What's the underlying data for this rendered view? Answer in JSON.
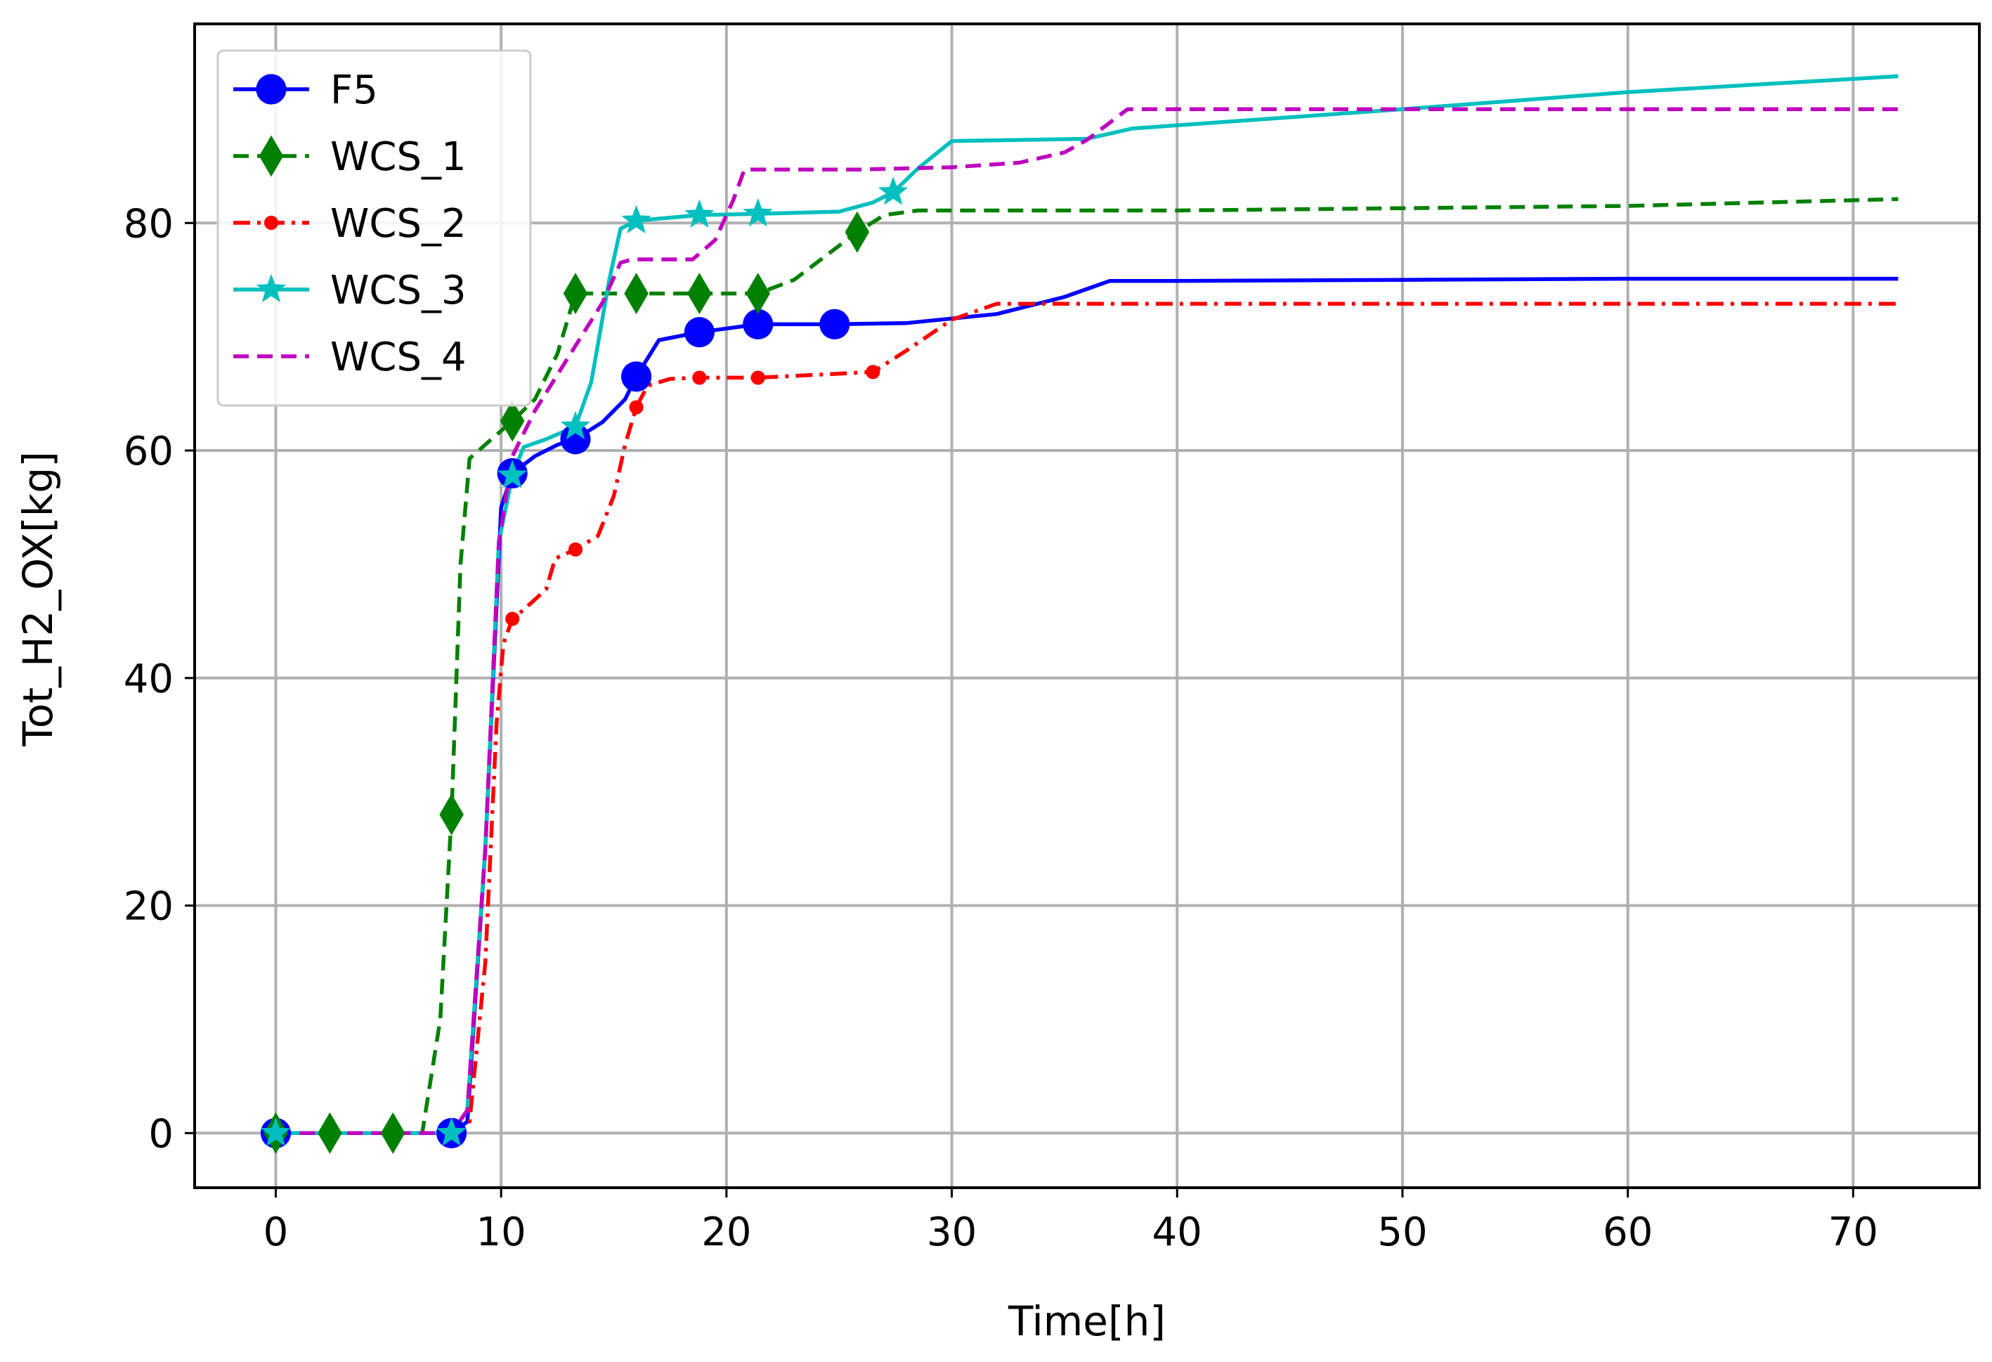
{
  "chart_data": {
    "type": "line",
    "title": "",
    "xlabel": "Time[h]",
    "ylabel": "Tot_H2_OX[kg]",
    "xlim": [
      -3.6,
      75.6
    ],
    "ylim": [
      -4.8,
      97.5
    ],
    "xticks": [
      0,
      10,
      20,
      30,
      40,
      50,
      60,
      70
    ],
    "yticks": [
      0,
      20,
      40,
      60,
      80
    ],
    "grid": true,
    "legend_position": "upper-left",
    "series": [
      {
        "name": "F5",
        "color": "#0000ff",
        "dash": "solid",
        "marker": "circle",
        "x": [
          0,
          7.8,
          8.5,
          9.3,
          10.0,
          10.5,
          11.5,
          12.5,
          13.3,
          14.5,
          15.5,
          16.0,
          17.0,
          18.8,
          21.4,
          24.8,
          28.0,
          32.0,
          35.0,
          37.0,
          40.0,
          50.0,
          60.0,
          72.0
        ],
        "y": [
          0,
          0,
          1,
          25,
          55,
          58,
          59.5,
          60.5,
          61.0,
          62.5,
          64.5,
          66.5,
          69.7,
          70.4,
          71.1,
          71.1,
          71.2,
          72.0,
          73.5,
          74.9,
          74.9,
          75.0,
          75.1,
          75.1
        ],
        "marker_x": [
          0,
          7.8,
          10.5,
          13.3,
          16.0,
          18.8,
          21.4,
          24.8
        ],
        "marker_y": [
          0,
          0,
          58,
          61,
          66.5,
          70.4,
          71.1,
          71.1
        ]
      },
      {
        "name": "WCS_1",
        "color": "#008000",
        "dash": "dashed",
        "marker": "diamond",
        "x": [
          0,
          6.5,
          7.3,
          7.8,
          8.2,
          8.6,
          10.5,
          11.5,
          12.5,
          13.3,
          14.0,
          16.0,
          18.8,
          21.4,
          23.0,
          25.8,
          27.0,
          28.5,
          40.0,
          60.0,
          72.0
        ],
        "y": [
          0,
          0,
          10,
          28,
          50,
          59.3,
          62.6,
          64.5,
          68.5,
          73.8,
          73.8,
          73.8,
          73.8,
          73.8,
          75.0,
          79.2,
          80.7,
          81.1,
          81.1,
          81.5,
          82.1
        ],
        "marker_x": [
          0,
          2.4,
          5.2,
          7.8,
          10.5,
          13.3,
          16.0,
          18.8,
          21.4,
          25.8
        ],
        "marker_y": [
          0,
          0,
          0,
          28,
          62.6,
          73.8,
          73.8,
          73.8,
          73.8,
          79.2
        ]
      },
      {
        "name": "WCS_2",
        "color": "#ff0000",
        "dash": "dashdot",
        "marker": "point",
        "x": [
          0,
          7.8,
          8.6,
          9.3,
          9.8,
          10.1,
          10.5,
          11.0,
          12.0,
          12.4,
          13.3,
          14.3,
          15.0,
          15.5,
          16.0,
          16.5,
          17.5,
          18.8,
          21.4,
          26.5,
          28.0,
          30.0,
          32.0,
          40.0,
          60.0,
          72.0
        ],
        "y": [
          0,
          0,
          1,
          15,
          36,
          43,
          45.2,
          46,
          47.8,
          50.5,
          51.3,
          52.5,
          56,
          60.5,
          63.8,
          65.7,
          66.3,
          66.4,
          66.4,
          66.9,
          68.8,
          71.5,
          72.9,
          72.9,
          72.9,
          72.9
        ],
        "marker_x": [
          0,
          7.8,
          10.5,
          13.3,
          16.0,
          18.8,
          21.4,
          26.5
        ],
        "marker_y": [
          0,
          0,
          45.2,
          51.3,
          63.8,
          66.4,
          66.4,
          66.9
        ]
      },
      {
        "name": "WCS_3",
        "color": "#00bfbf",
        "dash": "solid",
        "marker": "star",
        "x": [
          0,
          7.8,
          8.5,
          9.3,
          9.9,
          10.5,
          11.0,
          12.0,
          13.3,
          14.0,
          14.8,
          15.3,
          16.0,
          18.8,
          21.4,
          25.0,
          26.5,
          27.4,
          28.5,
          30.0,
          36.0,
          38.0,
          50.0,
          60.0,
          72.0
        ],
        "y": [
          0,
          0,
          2,
          25,
          52,
          57.8,
          60.3,
          61.0,
          62.1,
          66,
          75,
          79.5,
          80.2,
          80.7,
          80.8,
          81.0,
          81.8,
          82.7,
          84.8,
          87.2,
          87.4,
          88.3,
          90.0,
          91.5,
          92.9
        ],
        "marker_x": [
          0,
          7.8,
          10.5,
          13.3,
          16.0,
          18.8,
          21.4,
          27.4
        ],
        "marker_y": [
          0,
          0,
          57.8,
          62.1,
          80.2,
          80.7,
          80.8,
          82.7
        ]
      },
      {
        "name": "WCS_4",
        "color": "#bf00bf",
        "dash": "dashed",
        "marker": "none",
        "x": [
          0,
          7.8,
          8.5,
          9.3,
          9.9,
          10.5,
          11.5,
          13.3,
          14.5,
          15.3,
          15.8,
          16.5,
          18.5,
          19.5,
          20.3,
          20.8,
          21.4,
          26.0,
          30.0,
          33.0,
          35.0,
          36.0,
          37.0,
          37.8,
          40.0,
          50.0,
          60.0,
          72.0
        ],
        "y": [
          0,
          0,
          2,
          25,
          52,
          59.5,
          63.5,
          69.2,
          73,
          76.5,
          76.8,
          76.8,
          76.8,
          78.5,
          82,
          84.7,
          84.7,
          84.7,
          84.9,
          85.3,
          86.2,
          87.3,
          88.8,
          90.0,
          90.0,
          90.0,
          90.0,
          90.0
        ]
      }
    ]
  }
}
